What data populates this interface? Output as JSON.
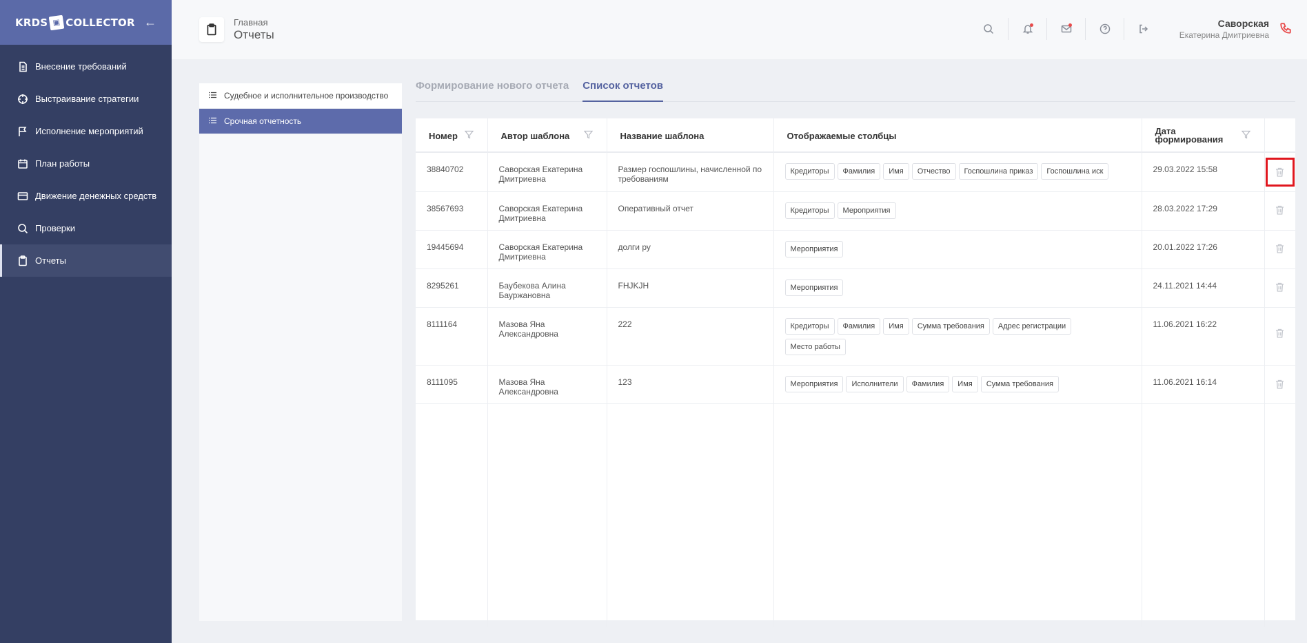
{
  "sidebar": {
    "logo_left": "KRDS",
    "logo_right": "COLLECTOR",
    "items": [
      {
        "label": "Внесение требований",
        "icon": "document-icon"
      },
      {
        "label": "Выстраивание стратегии",
        "icon": "target-icon"
      },
      {
        "label": "Исполнение мероприятий",
        "icon": "flag-icon"
      },
      {
        "label": "План работы",
        "icon": "calendar-icon"
      },
      {
        "label": "Движение денежных средств",
        "icon": "card-icon"
      },
      {
        "label": "Проверки",
        "icon": "search-icon"
      },
      {
        "label": "Отчеты",
        "icon": "clipboard-icon",
        "active": true
      }
    ]
  },
  "header": {
    "breadcrumb_home": "Главная",
    "page_title": "Отчеты",
    "user_last_name": "Саворская",
    "user_full_name": "Екатерина Дмитриевна"
  },
  "categories": [
    {
      "label": "Судебное и исполнительное производство"
    },
    {
      "label": "Срочная отчетность",
      "active": true
    }
  ],
  "tabs": [
    {
      "label": "Формирование нового отчета"
    },
    {
      "label": "Список отчетов",
      "active": true
    }
  ],
  "table": {
    "headers": [
      "Номер",
      "Автор шаблона",
      "Название шаблона",
      "Отображаемые столбцы",
      "Дата формирования"
    ],
    "rows": [
      {
        "number": "38840702",
        "author": "Саворская Екатерина Дмитриевна",
        "name": "Размер госпошлины, начисленной по требованиям",
        "columns": [
          "Кредиторы",
          "Фамилия",
          "Имя",
          "Отчество",
          "Госпошлина приказ",
          "Госпошлина иск"
        ],
        "date": "29.03.2022 15:58"
      },
      {
        "number": "38567693",
        "author": "Саворская Екатерина Дмитриевна",
        "name": "Оперативный отчет",
        "columns": [
          "Кредиторы",
          "Мероприятия"
        ],
        "date": "28.03.2022 17:29"
      },
      {
        "number": "19445694",
        "author": "Саворская Екатерина Дмитриевна",
        "name": "долги ру",
        "columns": [
          "Мероприятия"
        ],
        "date": "20.01.2022 17:26"
      },
      {
        "number": "8295261",
        "author": "Баубекова Алина Бауржановна",
        "name": "FHJKJH",
        "columns": [
          "Мероприятия"
        ],
        "date": "24.11.2021 14:44"
      },
      {
        "number": "8111164",
        "author": "Мазова Яна Александровна",
        "name": "222",
        "columns": [
          "Кредиторы",
          "Фамилия",
          "Имя",
          "Сумма требования",
          "Адрес регистрации",
          "Место работы"
        ],
        "date": "11.06.2021 16:22"
      },
      {
        "number": "8111095",
        "author": "Мазова Яна Александровна",
        "name": "123",
        "columns": [
          "Мероприятия",
          "Исполнители",
          "Фамилия",
          "Имя",
          "Сумма требования"
        ],
        "date": "11.06.2021 16:14"
      }
    ]
  },
  "colors": {
    "sidebar_bg": "#343f63",
    "logo_bar": "#5b6aa8",
    "accent": "#5563a0",
    "notify_dot": "#e84a4a",
    "highlight": "#e0161e"
  }
}
